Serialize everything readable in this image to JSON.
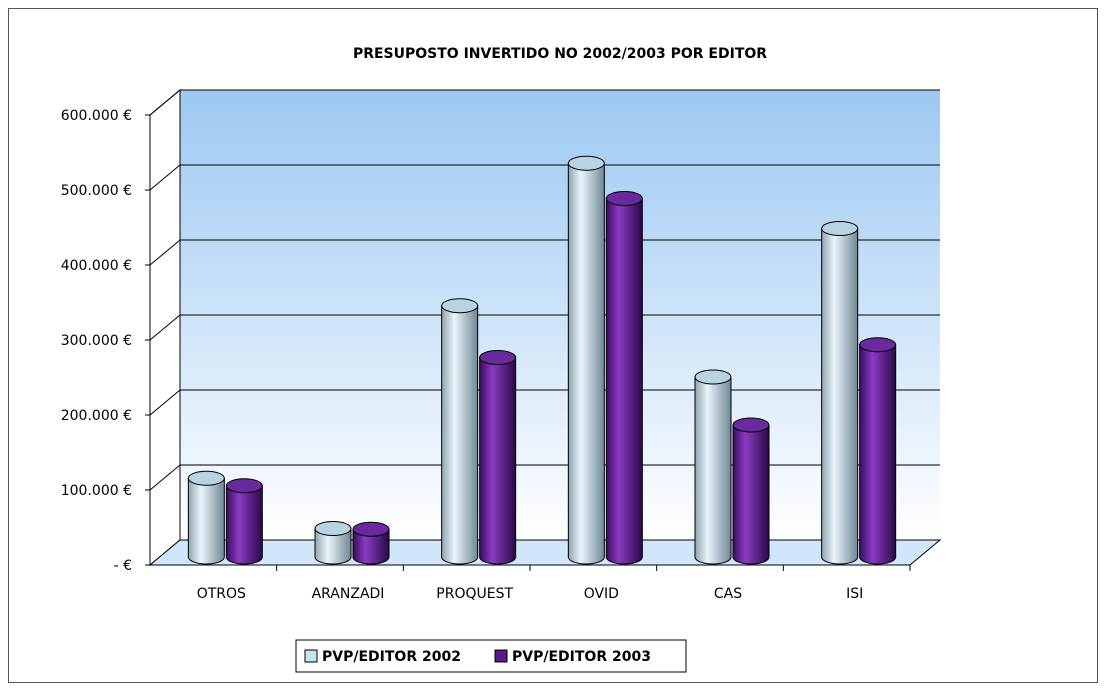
{
  "chart_data": {
    "type": "bar",
    "title": "PRESUPOSTO INVERTIDO NO 2002/2003 POR EDITOR",
    "categories": [
      "OTROS",
      "ARANZADI",
      "PROQUEST",
      "OVID",
      "CAS",
      "ISI"
    ],
    "series": [
      {
        "name": "PVP/EDITOR 2002",
        "values": [
          105000,
          38000,
          335000,
          525000,
          240000,
          438000
        ],
        "color": "#c6e4f1"
      },
      {
        "name": "PVP/EDITOR 2003",
        "values": [
          95000,
          37000,
          266000,
          478000,
          176000,
          283000
        ],
        "color": "#5b1a8a"
      }
    ],
    "ytick_labels": [
      "- €",
      "100.000 €",
      "200.000 €",
      "300.000 €",
      "400.000 €",
      "500.000 €",
      "600.000 €"
    ],
    "ytick_values": [
      0,
      100000,
      200000,
      300000,
      400000,
      500000,
      600000
    ],
    "ylim": [
      0,
      600000
    ],
    "grid": true,
    "legend_position": "bottom",
    "background_gradient": [
      "#9cc8f2",
      "#ffffff"
    ]
  }
}
